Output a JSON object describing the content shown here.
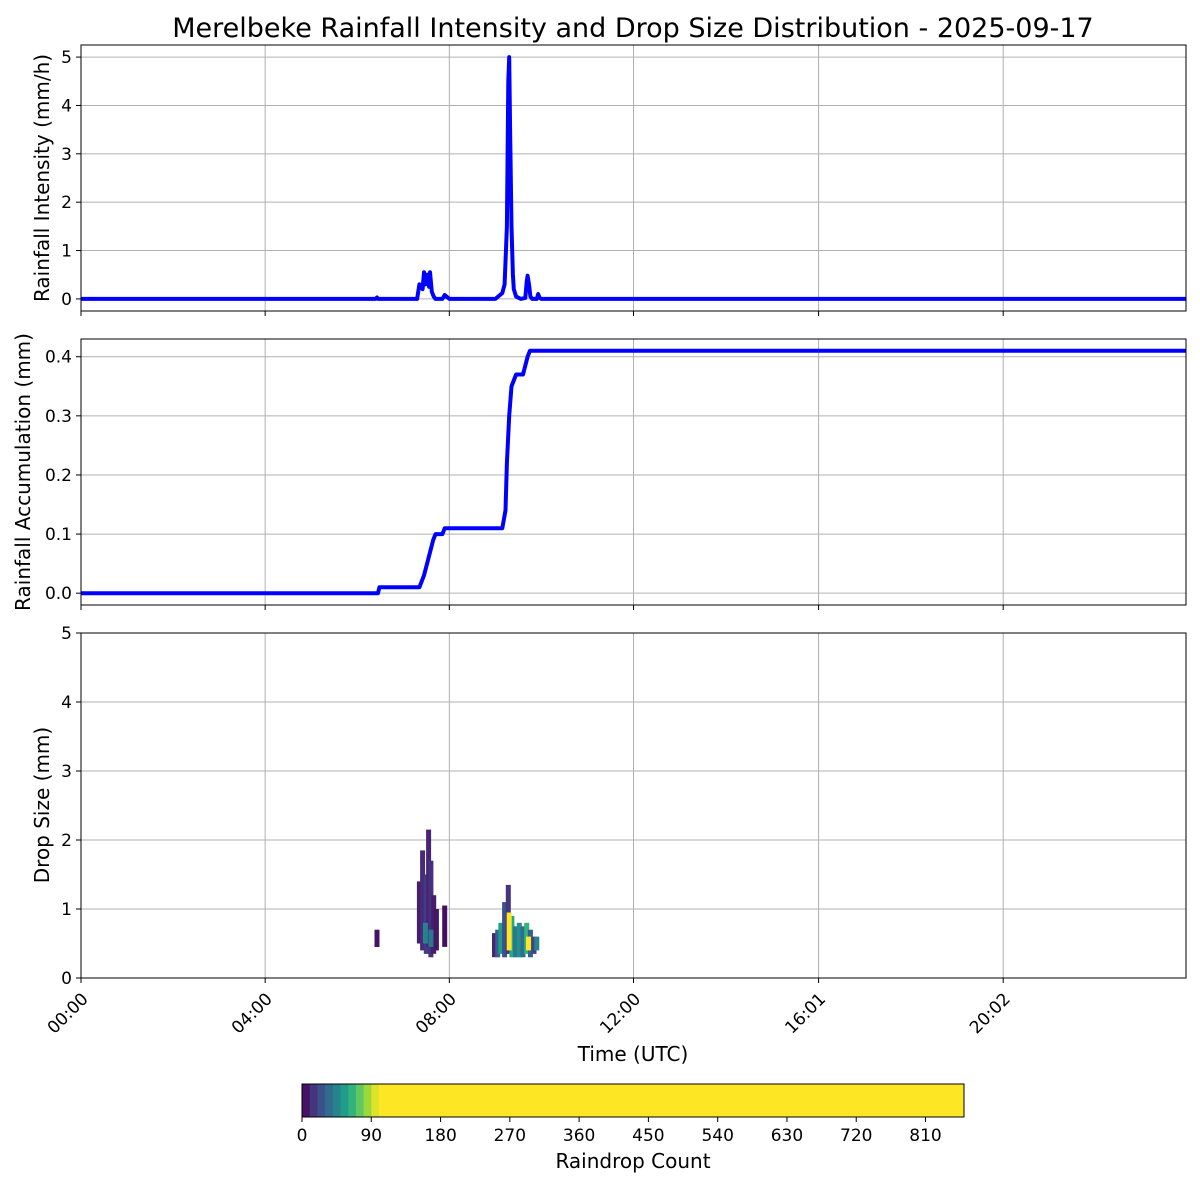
{
  "title": "Merelbeke Rainfall Intensity and Drop Size Distribution - 2025-09-17",
  "chart_data": [
    {
      "type": "line",
      "ylabel": "Rainfall Intensity (mm/h)",
      "xlim": [
        0,
        24
      ],
      "ylim": [
        -0.25,
        5.25
      ],
      "yticks": [
        0,
        1,
        2,
        3,
        4,
        5
      ],
      "grid": true,
      "series": [
        {
          "color": "#0000ff",
          "x": [
            0,
            6.4,
            6.43,
            6.46,
            7.3,
            7.35,
            7.42,
            7.45,
            7.48,
            7.52,
            7.56,
            7.58,
            7.62,
            7.66,
            7.7,
            7.85,
            7.9,
            8.0,
            9.0,
            9.1,
            9.15,
            9.2,
            9.25,
            9.28,
            9.3,
            9.32,
            9.35,
            9.38,
            9.4,
            9.45,
            9.55,
            9.65,
            9.68,
            9.7,
            9.73,
            9.76,
            9.8,
            9.9,
            9.93,
            9.96,
            10.0,
            24
          ],
          "y": [
            0,
            0,
            0.03,
            0,
            0,
            0.3,
            0.2,
            0.55,
            0.3,
            0.5,
            0.25,
            0.55,
            0.15,
            0.05,
            0,
            0,
            0.08,
            0,
            0,
            0.08,
            0.12,
            0.3,
            1.5,
            4.5,
            5.0,
            3.5,
            1.5,
            0.5,
            0.2,
            0.05,
            0,
            0.02,
            0.35,
            0.48,
            0.3,
            0.05,
            0,
            0,
            0.1,
            0.02,
            0,
            0
          ]
        }
      ]
    },
    {
      "type": "line",
      "ylabel": "Rainfall Accumulation (mm)",
      "xlim": [
        0,
        24
      ],
      "ylim": [
        -0.02,
        0.43
      ],
      "yticks": [
        0.0,
        0.1,
        0.2,
        0.3,
        0.4
      ],
      "grid": true,
      "series": [
        {
          "color": "#0000ff",
          "x": [
            0,
            6.45,
            6.48,
            7.35,
            7.45,
            7.55,
            7.65,
            7.7,
            7.85,
            7.9,
            9.15,
            9.22,
            9.25,
            9.3,
            9.35,
            9.4,
            9.45,
            9.5,
            9.6,
            9.7,
            9.75,
            24
          ],
          "y": [
            0,
            0,
            0.01,
            0.01,
            0.03,
            0.06,
            0.09,
            0.1,
            0.1,
            0.11,
            0.11,
            0.14,
            0.22,
            0.3,
            0.35,
            0.36,
            0.37,
            0.37,
            0.37,
            0.4,
            0.41,
            0.41
          ]
        }
      ]
    },
    {
      "type": "heatmap",
      "xlabel": "Time (UTC)",
      "ylabel": "Drop Size (mm)",
      "xlim": [
        0,
        24
      ],
      "ylim": [
        0,
        5
      ],
      "yticks": [
        0,
        1,
        2,
        3,
        4,
        5
      ],
      "xtick_labels": [
        "00:00",
        "04:00",
        "08:00",
        "12:00",
        "16:01",
        "20:02"
      ],
      "xtick_values": [
        0,
        4,
        8,
        12,
        16.02,
        20.03
      ],
      "grid": true,
      "colormap": "viridis",
      "colorbar": {
        "label": "Raindrop Count",
        "ticks": [
          0,
          90,
          180,
          270,
          360,
          450,
          540,
          630,
          720,
          810
        ],
        "range": [
          0,
          860
        ]
      },
      "cells": [
        {
          "x": 6.43,
          "y0": 0.45,
          "y1": 0.7,
          "count": 5
        },
        {
          "x": 7.35,
          "y0": 0.5,
          "y1": 1.4,
          "count": 8
        },
        {
          "x": 7.42,
          "y0": 0.4,
          "y1": 1.85,
          "count": 12
        },
        {
          "x": 7.5,
          "y0": 0.35,
          "y1": 1.5,
          "count": 18
        },
        {
          "x": 7.55,
          "y0": 0.45,
          "y1": 2.15,
          "count": 10
        },
        {
          "x": 7.6,
          "y0": 0.3,
          "y1": 1.7,
          "count": 14
        },
        {
          "x": 7.66,
          "y0": 0.35,
          "y1": 1.2,
          "count": 8
        },
        {
          "x": 7.72,
          "y0": 0.4,
          "y1": 1.0,
          "count": 6
        },
        {
          "x": 7.9,
          "y0": 0.45,
          "y1": 1.05,
          "count": 4
        },
        {
          "x": 7.48,
          "y0": 0.5,
          "y1": 0.8,
          "count": 45
        },
        {
          "x": 7.6,
          "y0": 0.45,
          "y1": 0.7,
          "count": 40
        },
        {
          "x": 8.98,
          "y0": 0.3,
          "y1": 0.65,
          "count": 10
        },
        {
          "x": 9.05,
          "y0": 0.3,
          "y1": 0.7,
          "count": 30
        },
        {
          "x": 9.12,
          "y0": 0.35,
          "y1": 0.8,
          "count": 55
        },
        {
          "x": 9.2,
          "y0": 0.3,
          "y1": 1.1,
          "count": 25
        },
        {
          "x": 9.28,
          "y0": 0.35,
          "y1": 1.35,
          "count": 15
        },
        {
          "x": 9.36,
          "y0": 0.3,
          "y1": 0.9,
          "count": 60
        },
        {
          "x": 9.44,
          "y0": 0.3,
          "y1": 0.75,
          "count": 40
        },
        {
          "x": 9.52,
          "y0": 0.3,
          "y1": 0.8,
          "count": 50
        },
        {
          "x": 9.6,
          "y0": 0.3,
          "y1": 0.75,
          "count": 35
        },
        {
          "x": 9.68,
          "y0": 0.35,
          "y1": 0.8,
          "count": 65
        },
        {
          "x": 9.76,
          "y0": 0.3,
          "y1": 0.7,
          "count": 30
        },
        {
          "x": 9.84,
          "y0": 0.35,
          "y1": 0.6,
          "count": 20
        },
        {
          "x": 9.9,
          "y0": 0.4,
          "y1": 0.6,
          "count": 45
        },
        {
          "x": 9.3,
          "y0": 0.4,
          "y1": 0.95,
          "count": 300
        },
        {
          "x": 9.72,
          "y0": 0.4,
          "y1": 0.6,
          "count": 200
        }
      ]
    }
  ]
}
